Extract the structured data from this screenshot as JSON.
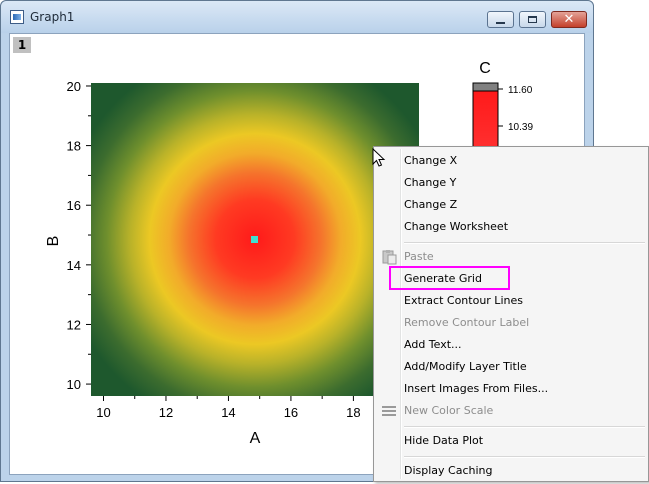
{
  "window": {
    "title": "Graph1",
    "layer_tab": "1",
    "colors": {
      "titlebar": "#c9dcf0",
      "close": "#c4402b"
    }
  },
  "plot": {
    "x_label": "A",
    "y_label": "B",
    "x_ticks": [
      "10",
      "12",
      "14",
      "16",
      "18"
    ],
    "y_ticks": [
      "10",
      "12",
      "14",
      "16",
      "18",
      "20"
    ],
    "colorscale_title": "C",
    "colorscale_ticks": [
      "11.60",
      "10.39"
    ],
    "marker_color": "#40e0d0"
  },
  "chart_data": {
    "type": "heatmap",
    "title": "",
    "xlabel": "A",
    "ylabel": "B",
    "xlim": [
      9.6,
      20.1
    ],
    "ylim": [
      9.6,
      20.1
    ],
    "x_ticks": [
      10,
      12,
      14,
      16,
      18
    ],
    "y_ticks": [
      10,
      12,
      14,
      16,
      18,
      20
    ],
    "center": [
      14.9,
      14.9
    ],
    "colorscale": {
      "title": "C",
      "ticks": [
        11.6,
        10.39
      ],
      "colors": [
        "#1e5a2e",
        "#3e7a2e",
        "#9aa82e",
        "#f0c020",
        "#f08030",
        "#ff2020"
      ]
    }
  },
  "context_menu": {
    "items": [
      {
        "label": "Change X",
        "enabled": true
      },
      {
        "label": "Change Y",
        "enabled": true
      },
      {
        "label": "Change Z",
        "enabled": true
      },
      {
        "label": "Change Worksheet",
        "enabled": true
      },
      {
        "separator": true
      },
      {
        "label": "Paste",
        "enabled": false,
        "icon": "paste-icon"
      },
      {
        "label": "Generate Grid",
        "enabled": true,
        "highlighted": true
      },
      {
        "label": "Extract Contour Lines",
        "enabled": true
      },
      {
        "label": "Remove Contour Label",
        "enabled": false
      },
      {
        "label": "Add Text...",
        "enabled": true
      },
      {
        "label": "Add/Modify Layer Title",
        "enabled": true
      },
      {
        "label": "Insert Images From Files...",
        "enabled": true
      },
      {
        "label": "New Color Scale",
        "enabled": false,
        "icon": "color-scale-icon"
      },
      {
        "separator": true
      },
      {
        "label": "Hide Data Plot",
        "enabled": true
      },
      {
        "separator": true
      },
      {
        "label": "Display Caching",
        "enabled": true
      }
    ],
    "highlight_color": "#ff00ff"
  }
}
